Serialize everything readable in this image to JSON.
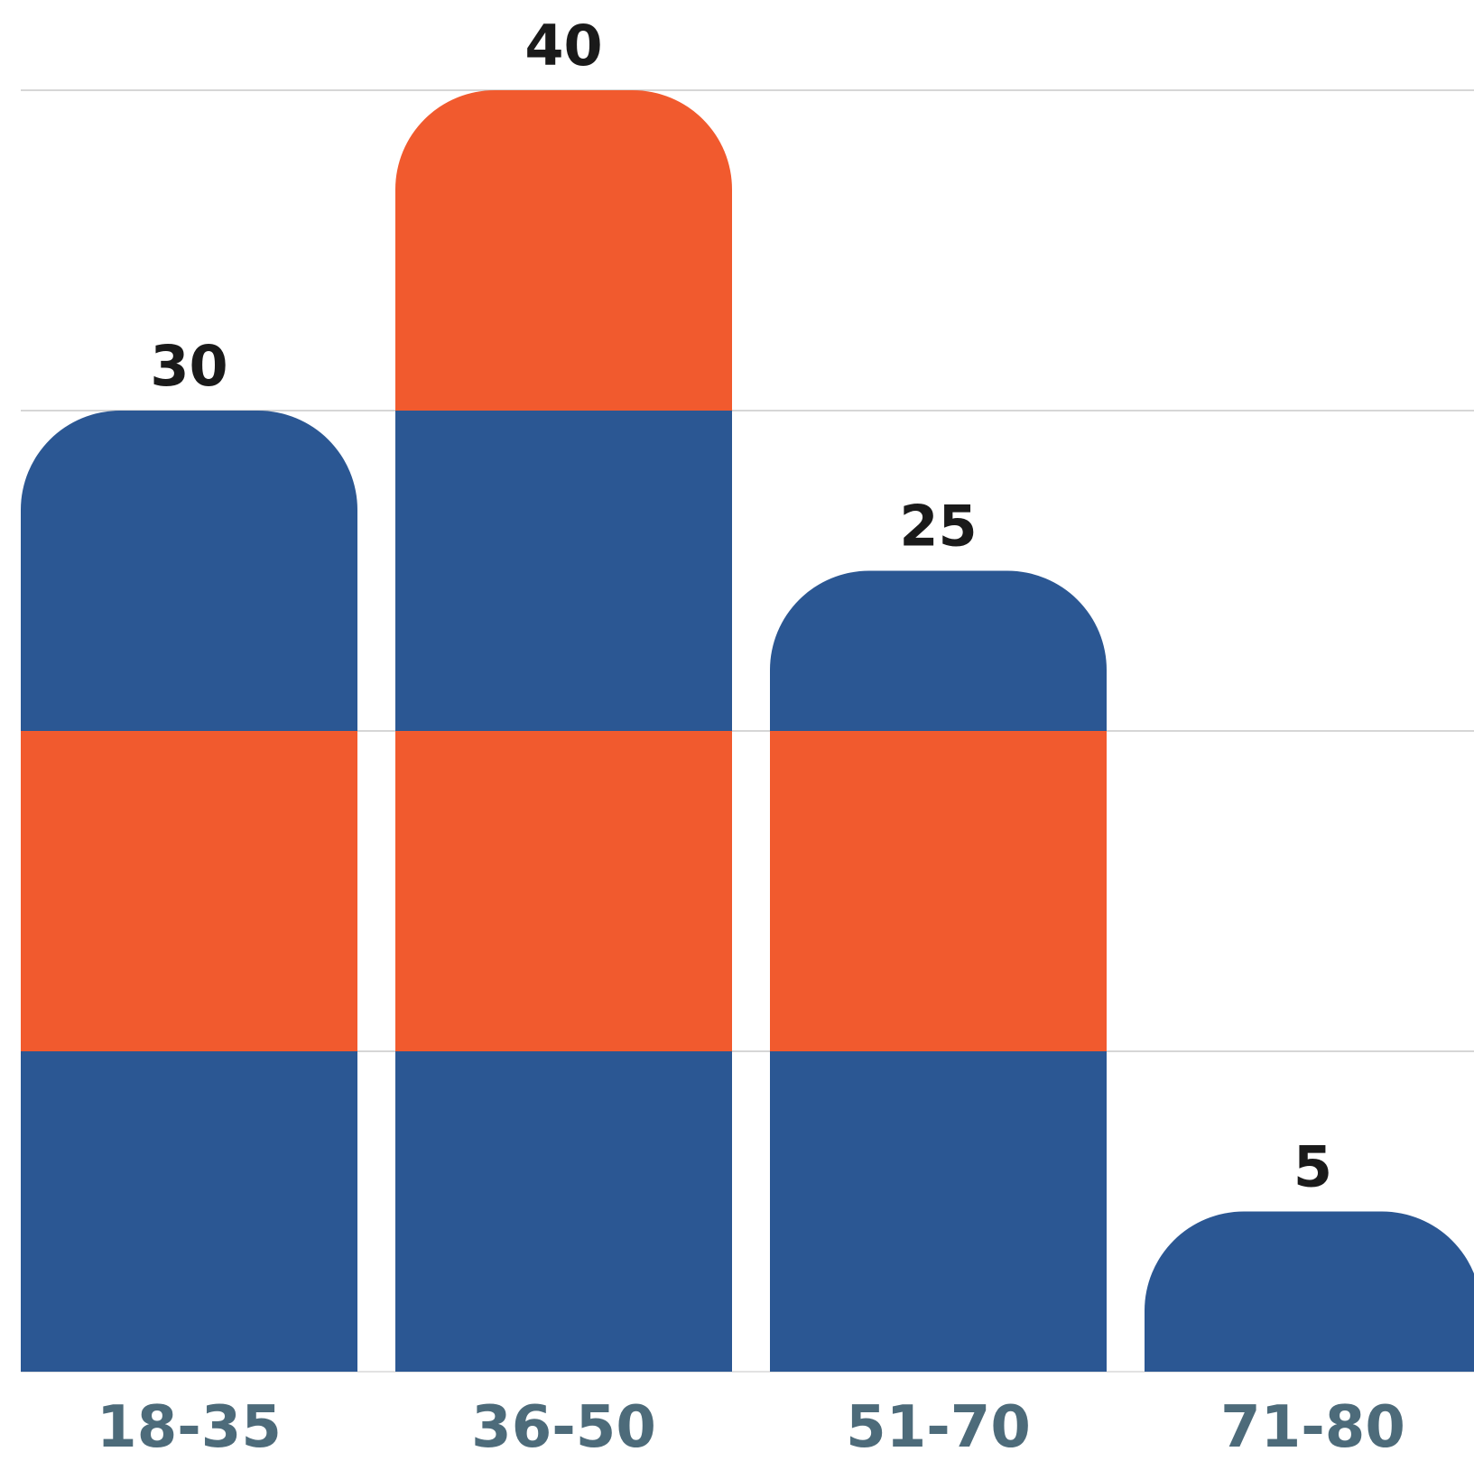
{
  "chart_data": {
    "type": "bar",
    "stacked": true,
    "categories": [
      "18-35",
      "36-50",
      "51-70",
      "71-80"
    ],
    "totals": [
      30,
      40,
      25,
      5
    ],
    "segments": [
      [
        10,
        10,
        10
      ],
      [
        10,
        10,
        10,
        10
      ],
      [
        10,
        10,
        5
      ],
      [
        5
      ]
    ],
    "ylim": [
      0,
      40
    ],
    "grid": true,
    "gridlines": [
      10,
      20,
      30,
      40
    ],
    "colors": {
      "blue": "#2b5793",
      "orange": "#f15a2e",
      "tick_label": "#4d6b7a",
      "value_label": "#1a1a1a"
    }
  }
}
